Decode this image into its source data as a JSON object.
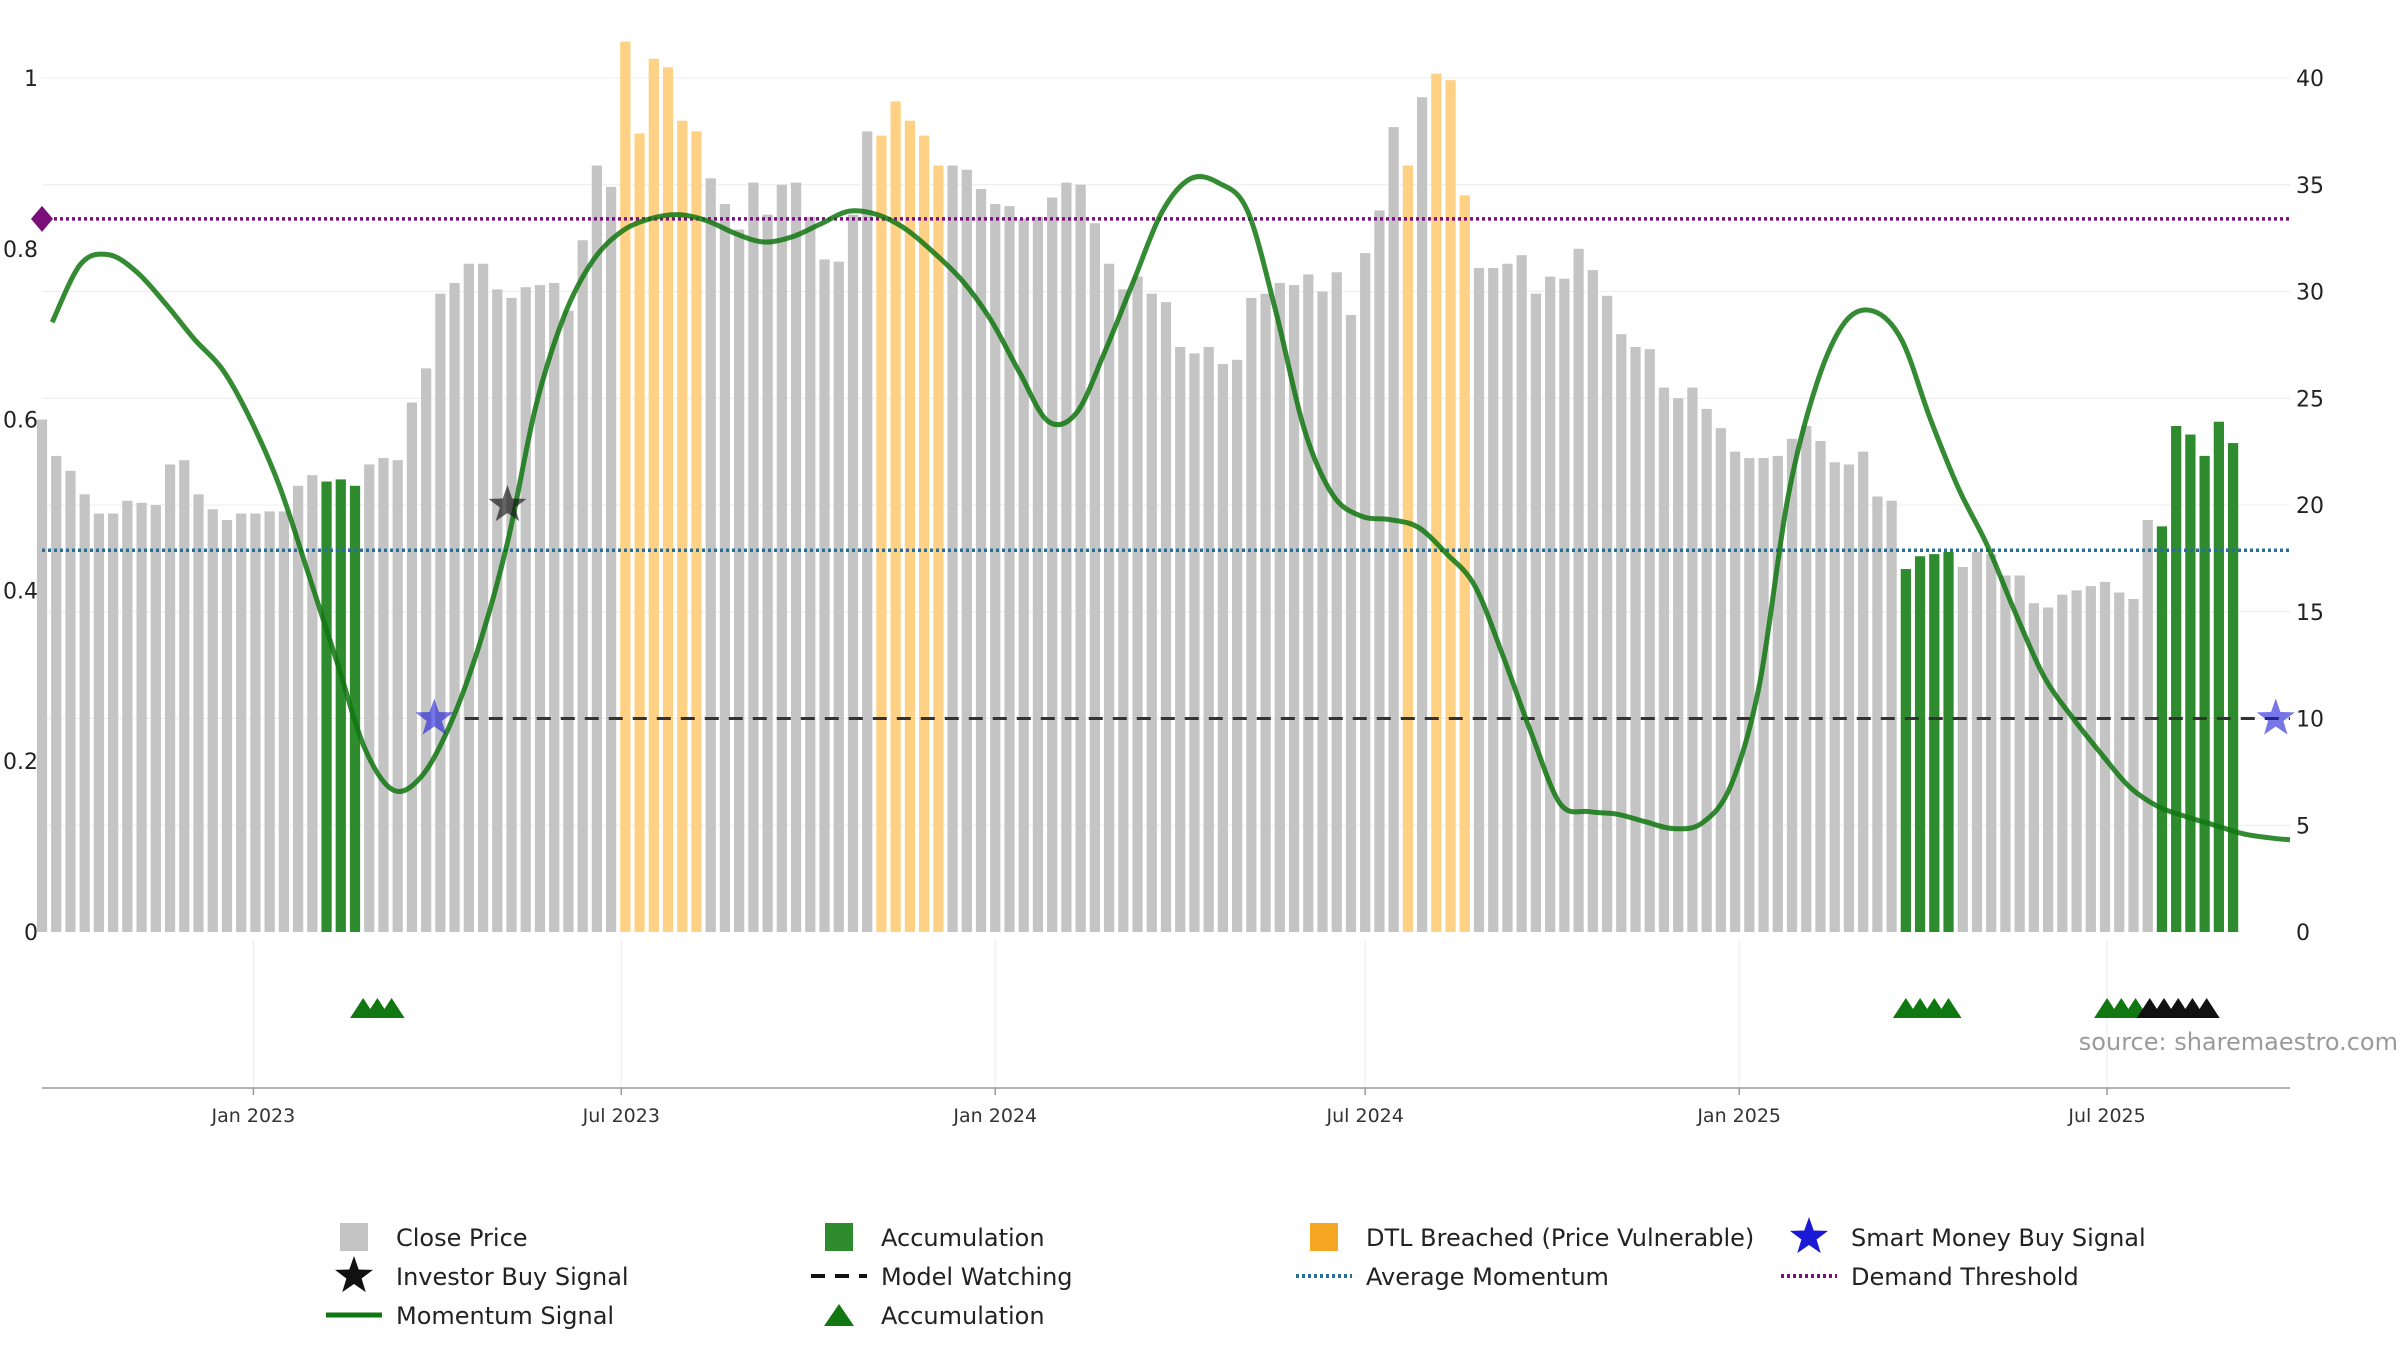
{
  "chart_data": {
    "type": "bar",
    "source_note": "source: sharemaestro.com",
    "left_axis": {
      "ylim": [
        0,
        1
      ],
      "ticks": [
        "0",
        "0.2",
        "0.4",
        "0.6",
        "0.8",
        "1"
      ]
    },
    "right_axis": {
      "ylim": [
        0,
        40
      ],
      "ticks": [
        "0",
        "5",
        "10",
        "15",
        "20",
        "25",
        "30",
        "35",
        "40"
      ]
    },
    "x_axis": {
      "start": "2022-09-19",
      "end": "2025-09-29",
      "ticks": [
        {
          "date": "2023-01-01",
          "label": "Jan 2023"
        },
        {
          "date": "2023-07-01",
          "label": "Jul 2023"
        },
        {
          "date": "2024-01-01",
          "label": "Jan 2024"
        },
        {
          "date": "2024-07-01",
          "label": "Jul 2024"
        },
        {
          "date": "2025-01-01",
          "label": "Jan 2025"
        },
        {
          "date": "2025-07-01",
          "label": "Jul 2025"
        }
      ]
    },
    "colors": {
      "close": "#c4c4c4",
      "accumulation": "#2e8b2e",
      "dtl": "#ffd185",
      "momentum": "#117711",
      "average": "#2a6f97",
      "demand": "#7a0f7a",
      "watching": "#333333",
      "smart_money": "#1a1ad6",
      "investor": "#111111"
    },
    "bar_start_date": "2022-09-19",
    "bar_interval_days": 7,
    "close_price": [
      24.0,
      22.3,
      21.6,
      20.5,
      19.6,
      19.6,
      20.2,
      20.1,
      20.0,
      21.9,
      22.1,
      20.5,
      19.8,
      19.3,
      19.6,
      19.6,
      19.7,
      19.7,
      20.9,
      21.4,
      21.1,
      21.2,
      20.9,
      21.9,
      22.2,
      22.1,
      24.8,
      26.4,
      29.9,
      30.4,
      31.3,
      31.3,
      30.1,
      29.7,
      30.2,
      30.3,
      30.4,
      29.1,
      32.4,
      35.9,
      34.9,
      41.7,
      37.4,
      40.9,
      40.5,
      38.0,
      37.5,
      35.3,
      34.1,
      32.9,
      35.1,
      33.6,
      35.0,
      35.1,
      33.5,
      31.5,
      31.4,
      33.6,
      37.5,
      37.3,
      38.9,
      38.0,
      37.3,
      35.9,
      35.9,
      35.7,
      34.8,
      34.1,
      34.0,
      33.4,
      33.5,
      34.4,
      35.1,
      35.0,
      33.2,
      31.3,
      30.1,
      30.7,
      29.9,
      29.5,
      27.4,
      27.1,
      27.4,
      26.6,
      26.8,
      29.7,
      29.9,
      30.4,
      30.3,
      30.8,
      30.0,
      30.9,
      28.9,
      31.8,
      33.8,
      37.7,
      35.9,
      39.1,
      40.2,
      39.9,
      34.5,
      31.1,
      31.1,
      31.3,
      31.7,
      29.9,
      30.7,
      30.6,
      32.0,
      31.0,
      29.8,
      28.0,
      27.4,
      27.3,
      25.5,
      25.0,
      25.5,
      24.5,
      23.6,
      22.5,
      22.2,
      22.2,
      22.3,
      23.1,
      23.7,
      23.0,
      22.0,
      21.9,
      22.5,
      20.4,
      20.2,
      17.0,
      17.6,
      17.7,
      17.8,
      17.1,
      17.8,
      17.7,
      16.7,
      16.7,
      15.4,
      15.2,
      15.8,
      16.0,
      16.2,
      16.4,
      15.9,
      15.6,
      19.3,
      19.0,
      23.7,
      23.3,
      22.3,
      23.9,
      22.9
    ],
    "bar_category": [
      "c",
      "c",
      "c",
      "c",
      "c",
      "c",
      "c",
      "c",
      "c",
      "c",
      "c",
      "c",
      "c",
      "c",
      "c",
      "c",
      "c",
      "c",
      "c",
      "c",
      "a",
      "a",
      "a",
      "c",
      "c",
      "c",
      "c",
      "c",
      "c",
      "c",
      "c",
      "c",
      "c",
      "c",
      "c",
      "c",
      "c",
      "c",
      "c",
      "c",
      "c",
      "d",
      "d",
      "d",
      "d",
      "d",
      "d",
      "c",
      "c",
      "c",
      "c",
      "c",
      "c",
      "c",
      "c",
      "c",
      "c",
      "c",
      "c",
      "d",
      "d",
      "d",
      "d",
      "d",
      "c",
      "c",
      "c",
      "c",
      "c",
      "c",
      "c",
      "c",
      "c",
      "c",
      "c",
      "c",
      "c",
      "c",
      "c",
      "c",
      "c",
      "c",
      "c",
      "c",
      "c",
      "c",
      "c",
      "c",
      "c",
      "c",
      "c",
      "c",
      "c",
      "c",
      "c",
      "c",
      "d",
      "c",
      "d",
      "d",
      "d",
      "c",
      "c",
      "c",
      "c",
      "c",
      "c",
      "c",
      "c",
      "c",
      "c",
      "c",
      "c",
      "c",
      "c",
      "c",
      "c",
      "c",
      "c",
      "c",
      "c",
      "c",
      "c",
      "c",
      "c",
      "c",
      "c",
      "c",
      "c",
      "c",
      "c",
      "a",
      "a",
      "a",
      "a",
      "c",
      "c",
      "c",
      "c",
      "c",
      "c",
      "c",
      "c",
      "c",
      "c",
      "c",
      "c",
      "c",
      "c",
      "a",
      "a",
      "a",
      "a",
      "a",
      "a",
      "a",
      "a",
      "a",
      "c",
      "c"
    ],
    "momentum_signal": [
      [
        "2022-09-24",
        0.714
      ],
      [
        "2022-10-08",
        0.782
      ],
      [
        "2022-10-22",
        0.793
      ],
      [
        "2022-11-05",
        0.772
      ],
      [
        "2022-11-19",
        0.735
      ],
      [
        "2022-12-03",
        0.694
      ],
      [
        "2022-12-17",
        0.658
      ],
      [
        "2022-12-31",
        0.598
      ],
      [
        "2023-01-14",
        0.521
      ],
      [
        "2023-01-28",
        0.42
      ],
      [
        "2023-02-11",
        0.317
      ],
      [
        "2023-02-25",
        0.214
      ],
      [
        "2023-03-11",
        0.166
      ],
      [
        "2023-03-25",
        0.183
      ],
      [
        "2023-04-08",
        0.244
      ],
      [
        "2023-04-22",
        0.335
      ],
      [
        "2023-05-06",
        0.456
      ],
      [
        "2023-05-20",
        0.616
      ],
      [
        "2023-06-03",
        0.722
      ],
      [
        "2023-06-17",
        0.786
      ],
      [
        "2023-07-01",
        0.82
      ],
      [
        "2023-07-15",
        0.835
      ],
      [
        "2023-07-29",
        0.84
      ],
      [
        "2023-08-12",
        0.833
      ],
      [
        "2023-08-26",
        0.818
      ],
      [
        "2023-09-09",
        0.808
      ],
      [
        "2023-09-23",
        0.814
      ],
      [
        "2023-10-07",
        0.829
      ],
      [
        "2023-10-21",
        0.844
      ],
      [
        "2023-11-04",
        0.84
      ],
      [
        "2023-11-18",
        0.823
      ],
      [
        "2023-12-02",
        0.795
      ],
      [
        "2023-12-16",
        0.762
      ],
      [
        "2023-12-30",
        0.716
      ],
      [
        "2024-01-13",
        0.655
      ],
      [
        "2024-01-27",
        0.598
      ],
      [
        "2024-02-10",
        0.608
      ],
      [
        "2024-02-24",
        0.68
      ],
      [
        "2024-03-09",
        0.762
      ],
      [
        "2024-03-23",
        0.843
      ],
      [
        "2024-04-06",
        0.882
      ],
      [
        "2024-04-20",
        0.877
      ],
      [
        "2024-05-04",
        0.845
      ],
      [
        "2024-05-18",
        0.727
      ],
      [
        "2024-06-01",
        0.589
      ],
      [
        "2024-06-15",
        0.512
      ],
      [
        "2024-06-29",
        0.487
      ],
      [
        "2024-07-13",
        0.483
      ],
      [
        "2024-07-27",
        0.474
      ],
      [
        "2024-08-10",
        0.443
      ],
      [
        "2024-08-24",
        0.405
      ],
      [
        "2024-09-07",
        0.322
      ],
      [
        "2024-09-21",
        0.231
      ],
      [
        "2024-10-05",
        0.15
      ],
      [
        "2024-10-19",
        0.141
      ],
      [
        "2024-11-02",
        0.138
      ],
      [
        "2024-11-16",
        0.129
      ],
      [
        "2024-11-30",
        0.121
      ],
      [
        "2024-12-14",
        0.128
      ],
      [
        "2024-12-28",
        0.172
      ],
      [
        "2025-01-11",
        0.29
      ],
      [
        "2025-01-25",
        0.509
      ],
      [
        "2025-02-08",
        0.641
      ],
      [
        "2025-02-22",
        0.714
      ],
      [
        "2025-03-08",
        0.727
      ],
      [
        "2025-03-22",
        0.693
      ],
      [
        "2025-04-05",
        0.601
      ],
      [
        "2025-04-19",
        0.519
      ],
      [
        "2025-05-03",
        0.453
      ],
      [
        "2025-05-17",
        0.373
      ],
      [
        "2025-05-31",
        0.299
      ],
      [
        "2025-06-14",
        0.251
      ],
      [
        "2025-06-28",
        0.209
      ],
      [
        "2025-07-12",
        0.17
      ],
      [
        "2025-07-26",
        0.147
      ],
      [
        "2025-08-09",
        0.135
      ],
      [
        "2025-08-23",
        0.125
      ],
      [
        "2025-09-06",
        0.115
      ],
      [
        "2025-09-20",
        0.11
      ],
      [
        "2025-09-29",
        0.108
      ]
    ],
    "average_momentum": 0.447,
    "demand_threshold": 0.835,
    "model_watching": {
      "from": "2023-04-15",
      "to": "2025-09-29",
      "value": 0.25
    },
    "smart_money_buy_signals": [
      [
        "2023-03-31",
        0.25
      ],
      [
        "2025-09-22",
        0.25
      ]
    ],
    "investor_buy_signals": [
      [
        "2023-05-06",
        0.5
      ]
    ],
    "accumulation_markers": [
      "2023-02-24",
      "2023-03-03",
      "2023-03-10",
      "2025-03-24",
      "2025-03-31",
      "2025-04-07",
      "2025-04-14",
      "2025-07-01",
      "2025-07-08",
      "2025-07-15"
    ],
    "watching_markers": [
      "2025-07-22",
      "2025-07-29",
      "2025-08-05",
      "2025-08-12",
      "2025-08-19"
    ],
    "legend": [
      {
        "label": "Close Price",
        "symbol": "square",
        "color": "#c4c4c4"
      },
      {
        "label": "Accumulation",
        "symbol": "square",
        "color": "#2e8b2e"
      },
      {
        "label": "DTL Breached (Price Vulnerable)",
        "symbol": "square",
        "color": "#f5a623"
      },
      {
        "label": "Smart Money Buy Signal",
        "symbol": "star",
        "color": "#1a1ad6"
      },
      {
        "label": "Investor Buy Signal",
        "symbol": "star",
        "color": "#111111"
      },
      {
        "label": "Model Watching",
        "symbol": "dash",
        "color": "#111111"
      },
      {
        "label": "Average Momentum",
        "symbol": "dots",
        "color": "#2a6f97"
      },
      {
        "label": "Demand Threshold",
        "symbol": "dots",
        "color": "#7a0f7a"
      },
      {
        "label": "Momentum Signal",
        "symbol": "line",
        "color": "#117711"
      },
      {
        "label": "Accumulation",
        "symbol": "triangle",
        "color": "#117711"
      }
    ]
  }
}
